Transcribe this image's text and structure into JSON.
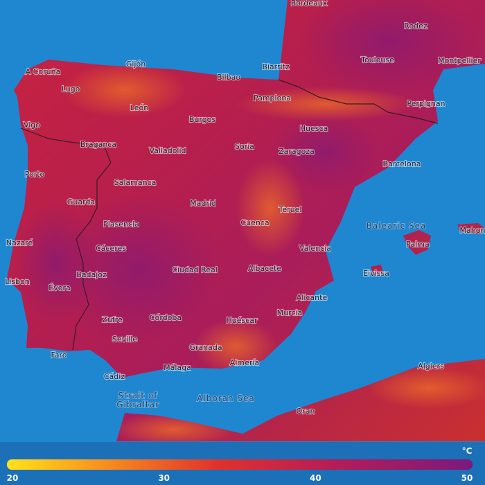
{
  "map": {
    "cities": [
      "Bordeaux",
      "Rodez",
      "Toulouse",
      "Montpellier",
      "A Coruña",
      "Gijón",
      "Bilbao",
      "Biarritz",
      "Lugo",
      "Pamplona",
      "Perpignan",
      "León",
      "Burgos",
      "Vigo",
      "Huesca",
      "Braganca",
      "Valladolid",
      "Soria",
      "Zaragoza",
      "Barcelona",
      "Porto",
      "Salamanca",
      "Guarda",
      "Madrid",
      "Teruel",
      "Plasencia",
      "Cuenca",
      "Mahon",
      "Nazaré",
      "Palma",
      "Cáceres",
      "Valencia",
      "Ciudad Real",
      "Albacete",
      "Badajoz",
      "Eivissa",
      "Lisbon",
      "Évora",
      "Alicante",
      "Murcia",
      "Córdoba",
      "Zufre",
      "Huéscar",
      "Seville",
      "Granada",
      "Faro",
      "Almería",
      "Málaga",
      "Algiers",
      "Cádiz",
      "Oran"
    ],
    "seas": {
      "balearic": "Balearic Sea",
      "alboran": "Alboran Sea",
      "strait": [
        "Strait of",
        "Gibraltar"
      ]
    }
  },
  "legend": {
    "unit": "°C",
    "ticks": [
      20,
      30,
      40,
      50
    ]
  }
}
